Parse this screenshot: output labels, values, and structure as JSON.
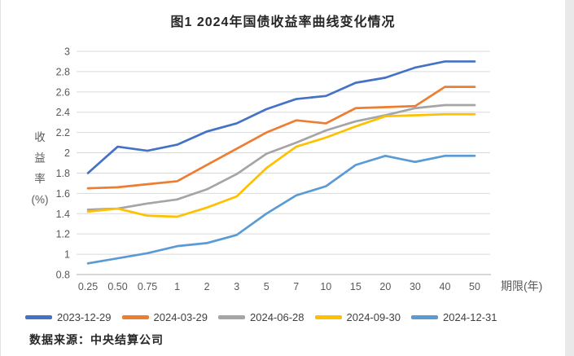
{
  "title": "图1 2024年国债收益率曲线变化情况",
  "source": "数据来源：中央结算公司",
  "chart_data": {
    "type": "line",
    "title": "图1 2024年国债收益率曲线变化情况",
    "xlabel": "期限(年)",
    "ylabel": "收益率(%)",
    "ylabel_lines": [
      "收",
      "益",
      "率",
      "(%)"
    ],
    "categories": [
      "0.25",
      "0.50",
      "0.75",
      "1",
      "2",
      "3",
      "5",
      "7",
      "10",
      "15",
      "20",
      "30",
      "40",
      "50"
    ],
    "ylim": [
      0.8,
      3.0
    ],
    "ytick_step": 0.2,
    "grid": true,
    "legend_position": "bottom",
    "gridline_color": "#d9d9d9",
    "axis_line_color": "#bfbfbf",
    "tick_label_color": "#595959",
    "series": [
      {
        "name": "2023-12-29",
        "color": "#4472c4",
        "values": [
          1.8,
          2.06,
          2.02,
          2.08,
          2.21,
          2.29,
          2.43,
          2.53,
          2.56,
          2.69,
          2.74,
          2.84,
          2.9,
          2.9
        ]
      },
      {
        "name": "2024-03-29",
        "color": "#ed7d31",
        "values": [
          1.65,
          1.66,
          1.69,
          1.72,
          1.88,
          2.04,
          2.2,
          2.32,
          2.29,
          2.44,
          2.45,
          2.46,
          2.65,
          2.65
        ]
      },
      {
        "name": "2024-06-28",
        "color": "#a5a5a5",
        "values": [
          1.44,
          1.45,
          1.5,
          1.54,
          1.64,
          1.79,
          1.99,
          2.1,
          2.22,
          2.31,
          2.37,
          2.44,
          2.47,
          2.47
        ]
      },
      {
        "name": "2024-09-30",
        "color": "#ffc000",
        "values": [
          1.42,
          1.45,
          1.38,
          1.37,
          1.46,
          1.57,
          1.85,
          2.06,
          2.15,
          2.26,
          2.36,
          2.37,
          2.38,
          2.38
        ]
      },
      {
        "name": "2024-12-31",
        "color": "#5b9bd5",
        "values": [
          0.91,
          0.96,
          1.01,
          1.08,
          1.11,
          1.19,
          1.4,
          1.58,
          1.67,
          1.88,
          1.97,
          1.91,
          1.97,
          1.97
        ]
      }
    ]
  }
}
